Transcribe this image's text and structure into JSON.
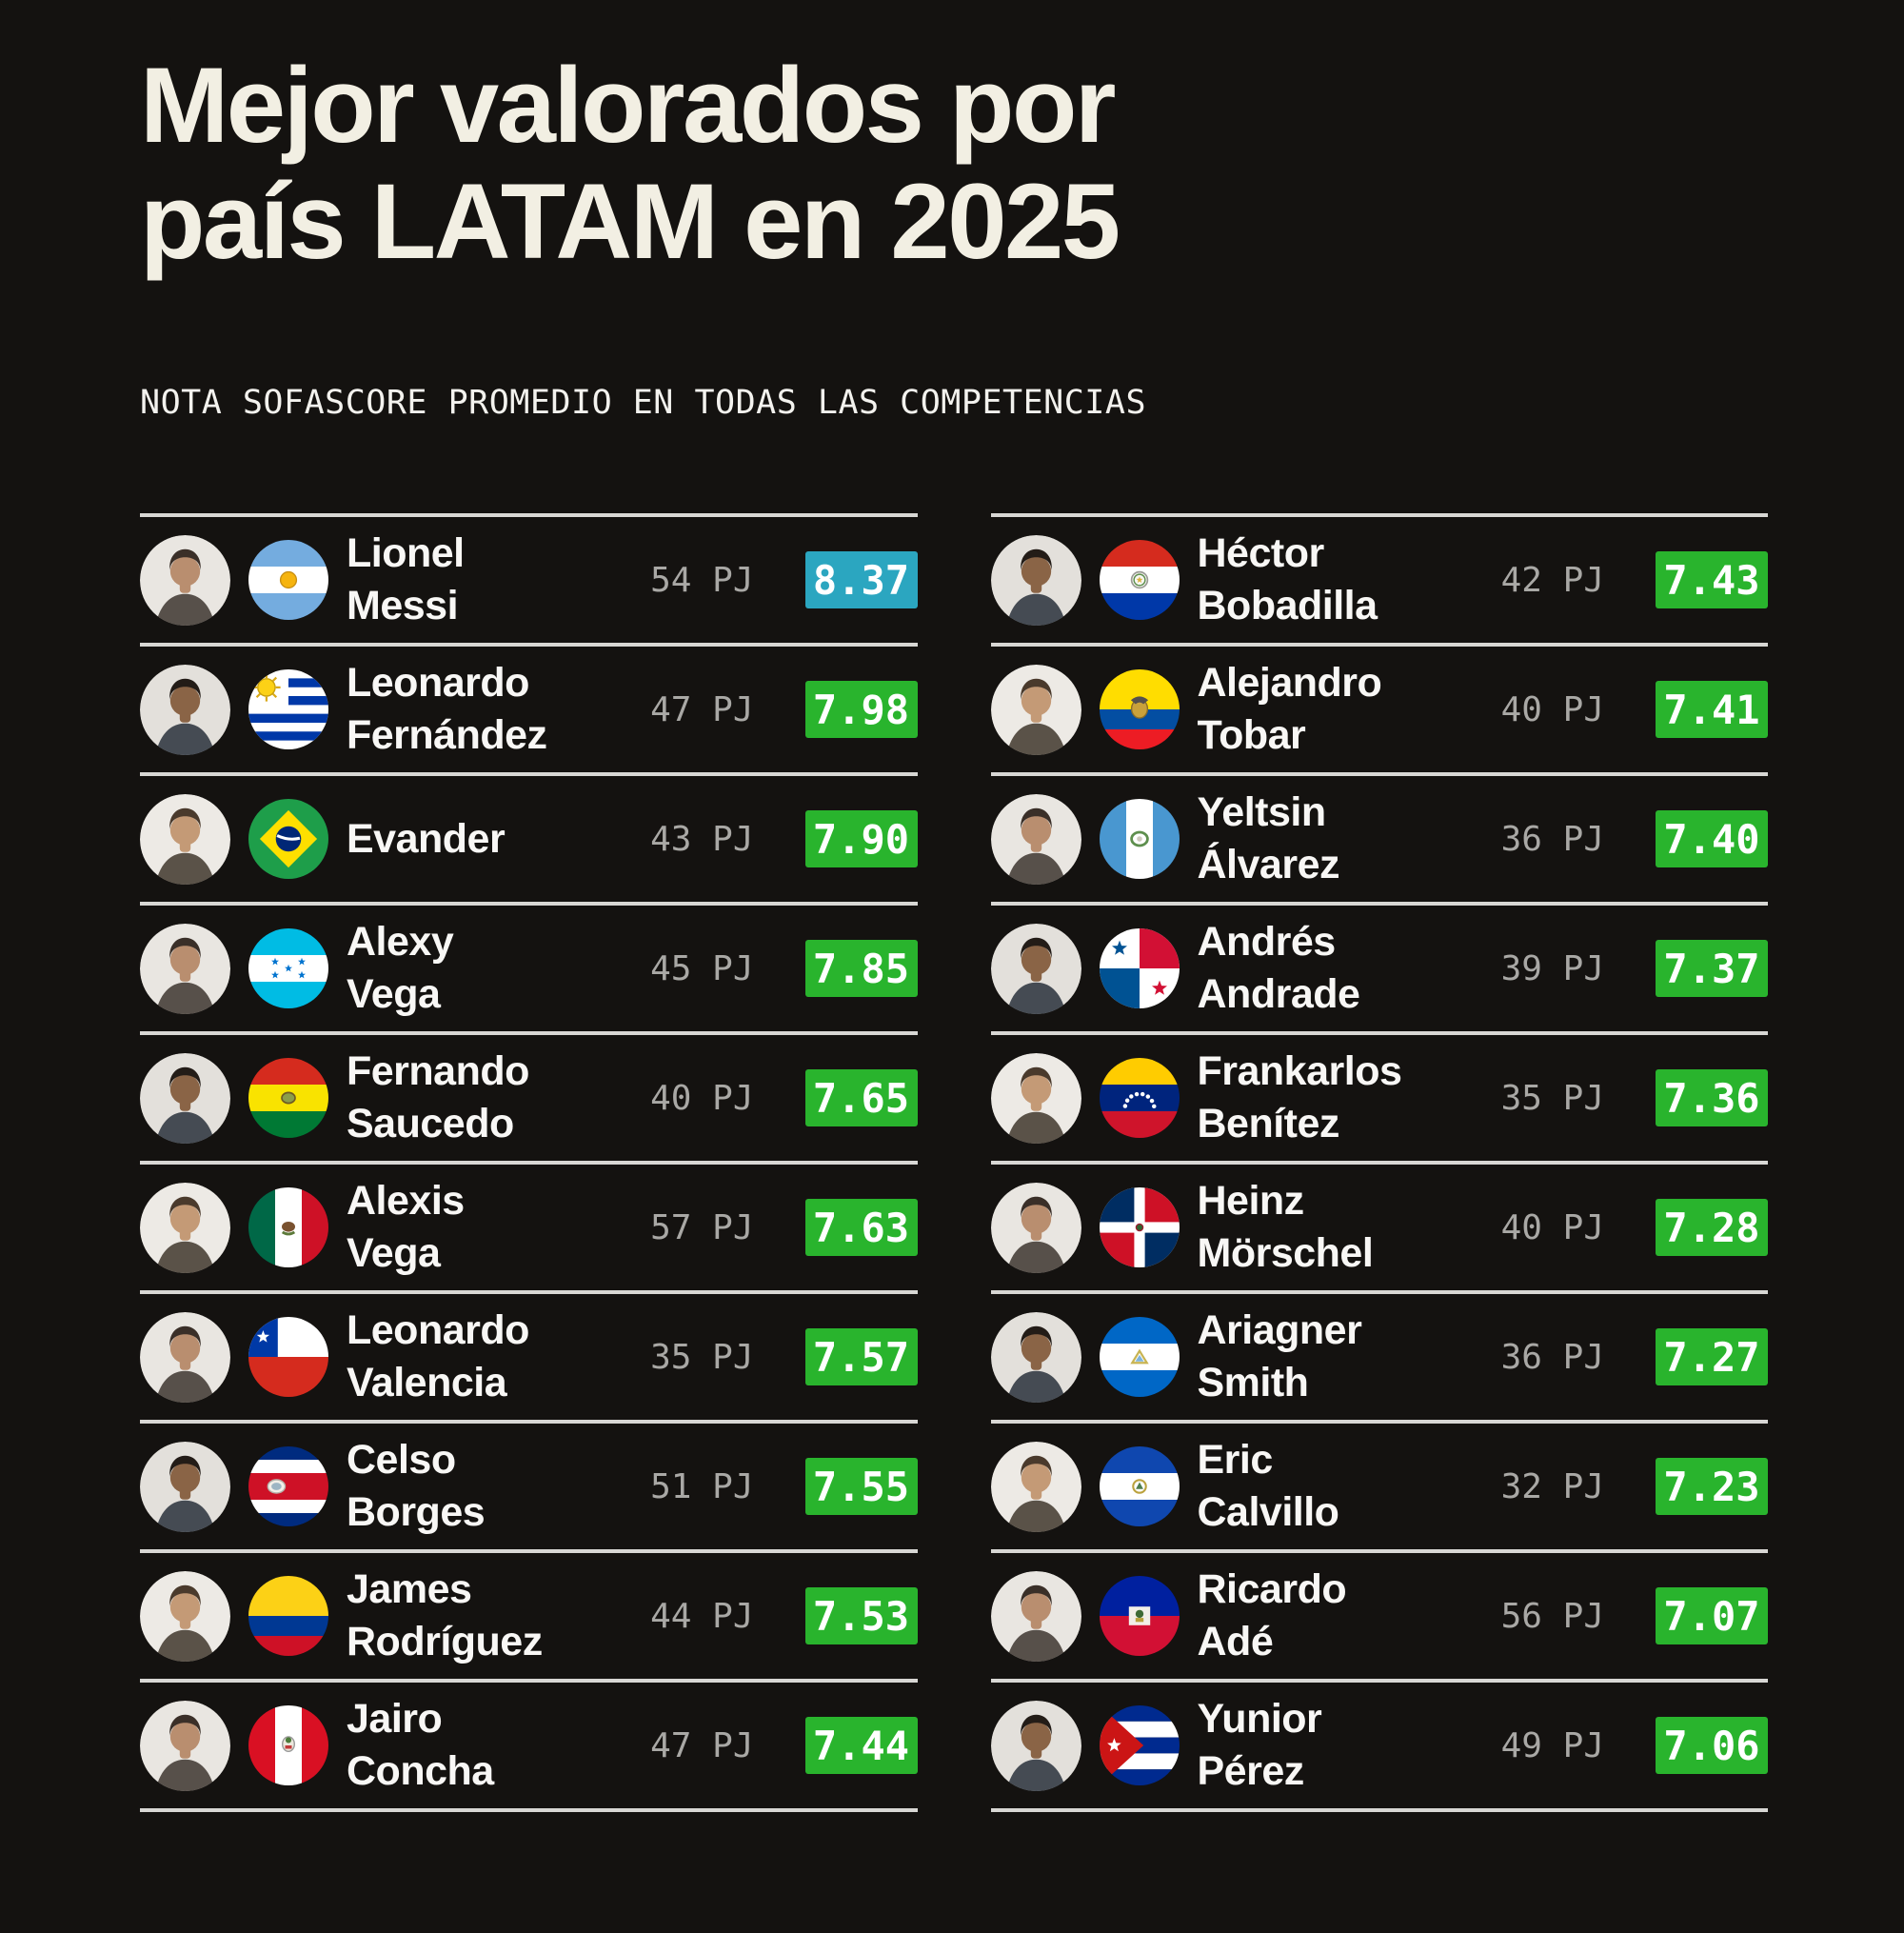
{
  "title": {
    "line1": "Mejor valorados por",
    "line2": "país LATAM en 2025"
  },
  "subtitle": "NOTA SOFASCORE PROMEDIO EN TODAS LAS COMPETENCIAS",
  "pj_suffix": "PJ",
  "colors": {
    "background": "#141210",
    "divider": "#d8d7d4",
    "rating_green": "#29b42d",
    "rating_blue": "#2ba6c0"
  },
  "left_column": [
    {
      "first": "Lionel",
      "last": "Messi",
      "country": "Argentina",
      "flag": "argentina",
      "pj": 54,
      "rating": "8.37",
      "rating_style": "blue"
    },
    {
      "first": "Leonardo",
      "last": "Fernández",
      "country": "Uruguay",
      "flag": "uruguay",
      "pj": 47,
      "rating": "7.98",
      "rating_style": "green"
    },
    {
      "first": "Evander",
      "last": "",
      "country": "Brasil",
      "flag": "brazil",
      "pj": 43,
      "rating": "7.90",
      "rating_style": "green"
    },
    {
      "first": "Alexy",
      "last": "Vega",
      "country": "Honduras",
      "flag": "honduras",
      "pj": 45,
      "rating": "7.85",
      "rating_style": "green"
    },
    {
      "first": "Fernando",
      "last": "Saucedo",
      "country": "Bolivia",
      "flag": "bolivia",
      "pj": 40,
      "rating": "7.65",
      "rating_style": "green"
    },
    {
      "first": "Alexis",
      "last": "Vega",
      "country": "México",
      "flag": "mexico",
      "pj": 57,
      "rating": "7.63",
      "rating_style": "green"
    },
    {
      "first": "Leonardo",
      "last": "Valencia",
      "country": "Chile",
      "flag": "chile",
      "pj": 35,
      "rating": "7.57",
      "rating_style": "green"
    },
    {
      "first": "Celso",
      "last": "Borges",
      "country": "Costa Rica",
      "flag": "costarica",
      "pj": 51,
      "rating": "7.55",
      "rating_style": "green"
    },
    {
      "first": "James",
      "last": "Rodríguez",
      "country": "Colombia",
      "flag": "colombia",
      "pj": 44,
      "rating": "7.53",
      "rating_style": "green"
    },
    {
      "first": "Jairo",
      "last": "Concha",
      "country": "Perú",
      "flag": "peru",
      "pj": 47,
      "rating": "7.44",
      "rating_style": "green"
    }
  ],
  "right_column": [
    {
      "first": "Héctor",
      "last": "Bobadilla",
      "country": "Paraguay",
      "flag": "paraguay",
      "pj": 42,
      "rating": "7.43",
      "rating_style": "green"
    },
    {
      "first": "Alejandro",
      "last": "Tobar",
      "country": "Ecuador",
      "flag": "ecuador",
      "pj": 40,
      "rating": "7.41",
      "rating_style": "green"
    },
    {
      "first": "Yeltsin",
      "last": "Álvarez",
      "country": "Guatemala",
      "flag": "guatemala",
      "pj": 36,
      "rating": "7.40",
      "rating_style": "green"
    },
    {
      "first": "Andrés",
      "last": "Andrade",
      "country": "Panamá",
      "flag": "panama",
      "pj": 39,
      "rating": "7.37",
      "rating_style": "green"
    },
    {
      "first": "Frankarlos",
      "last": "Benítez",
      "country": "Venezuela",
      "flag": "venezuela",
      "pj": 35,
      "rating": "7.36",
      "rating_style": "green"
    },
    {
      "first": "Heinz",
      "last": "Mörschel",
      "country": "República Dominicana",
      "flag": "dominicanrepublic",
      "pj": 40,
      "rating": "7.28",
      "rating_style": "green"
    },
    {
      "first": "Ariagner",
      "last": "Smith",
      "country": "Nicaragua",
      "flag": "nicaragua",
      "pj": 36,
      "rating": "7.27",
      "rating_style": "green"
    },
    {
      "first": "Eric",
      "last": "Calvillo",
      "country": "El Salvador",
      "flag": "elsalvador",
      "pj": 32,
      "rating": "7.23",
      "rating_style": "green"
    },
    {
      "first": "Ricardo",
      "last": "Adé",
      "country": "Haití",
      "flag": "haiti",
      "pj": 56,
      "rating": "7.07",
      "rating_style": "green"
    },
    {
      "first": "Yunior",
      "last": "Pérez",
      "country": "Cuba",
      "flag": "cuba",
      "pj": 49,
      "rating": "7.06",
      "rating_style": "green"
    }
  ]
}
